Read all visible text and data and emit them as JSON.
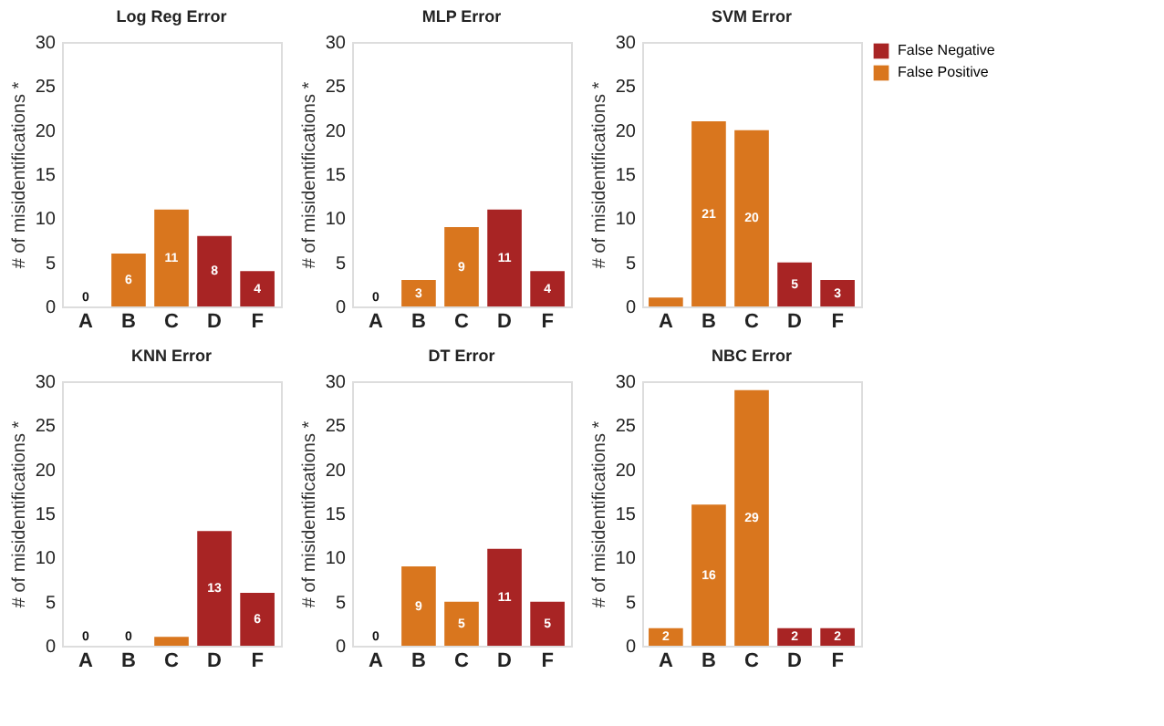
{
  "chart_data": [
    {
      "type": "bar",
      "title": "Log Reg Error",
      "ylabel": "# of misidentifications *",
      "categories": [
        "A",
        "B",
        "C",
        "D",
        "F"
      ],
      "ylim": [
        0,
        30
      ],
      "yticks": [
        0,
        5,
        10,
        15,
        20,
        25,
        30
      ],
      "grid": false,
      "legend": false,
      "data_labels": true,
      "series": [
        {
          "color": "#a82424",
          "values": [
            null,
            null,
            null,
            8,
            4
          ]
        },
        {
          "color": "#d9761e",
          "values": [
            0,
            6,
            11,
            null,
            null
          ]
        }
      ]
    },
    {
      "type": "bar",
      "title": "MLP Error",
      "ylabel": "# of misidentifications *",
      "categories": [
        "A",
        "B",
        "C",
        "D",
        "F"
      ],
      "ylim": [
        0,
        30
      ],
      "yticks": [
        0,
        5,
        10,
        15,
        20,
        25,
        30
      ],
      "grid": false,
      "legend": false,
      "data_labels": true,
      "series": [
        {
          "color": "#a82424",
          "values": [
            null,
            null,
            null,
            11,
            4
          ]
        },
        {
          "color": "#d9761e",
          "values": [
            0,
            3,
            9,
            null,
            null
          ]
        }
      ]
    },
    {
      "type": "bar",
      "title": "SVM Error",
      "ylabel": "# of misidentifications *",
      "categories": [
        "A",
        "B",
        "C",
        "D",
        "F"
      ],
      "ylim": [
        0,
        30
      ],
      "yticks": [
        0,
        5,
        10,
        15,
        20,
        25,
        30
      ],
      "grid": false,
      "legend": "top right",
      "series": [
        {
          "name": "False Negative",
          "color": "#a82424",
          "values": [
            null,
            null,
            null,
            5,
            3
          ],
          "value_labels": [
            null,
            null,
            null,
            "5",
            "3"
          ]
        },
        {
          "name": "False Positive",
          "color": "#d9761e",
          "values": [
            1,
            21,
            20,
            null,
            null
          ],
          "value_labels": [
            null,
            "21",
            "20",
            null,
            null
          ]
        }
      ]
    },
    {
      "type": "bar",
      "title": "KNN Error",
      "ylabel": "# of misidentifications *",
      "categories": [
        "A",
        "B",
        "C",
        "D",
        "F"
      ],
      "ylim": [
        0,
        30
      ],
      "yticks": [
        0,
        5,
        10,
        15,
        20,
        25,
        30
      ],
      "grid": false,
      "legend": false,
      "series": [
        {
          "color": "#a82424",
          "values": [
            null,
            null,
            null,
            13,
            6
          ],
          "value_labels": [
            null,
            null,
            null,
            "13",
            "6"
          ]
        },
        {
          "color": "#d9761e",
          "values": [
            0,
            0,
            1,
            null,
            null
          ],
          "value_labels": [
            "0",
            "0",
            null,
            null,
            null
          ]
        }
      ]
    },
    {
      "type": "bar",
      "title": "DT Error",
      "ylabel": "# of misidentifications *",
      "categories": [
        "A",
        "B",
        "C",
        "D",
        "F"
      ],
      "ylim": [
        0,
        30
      ],
      "yticks": [
        0,
        5,
        10,
        15,
        20,
        25,
        30
      ],
      "grid": false,
      "legend": false,
      "data_labels": true,
      "series": [
        {
          "color": "#a82424",
          "values": [
            null,
            null,
            null,
            11,
            5
          ]
        },
        {
          "color": "#d9761e",
          "values": [
            0,
            9,
            5,
            null,
            null
          ]
        }
      ]
    },
    {
      "type": "bar",
      "title": "NBC Error",
      "ylabel": "# of misidentifications *",
      "categories": [
        "A",
        "B",
        "C",
        "D",
        "F"
      ],
      "ylim": [
        0,
        30
      ],
      "yticks": [
        0,
        5,
        10,
        15,
        20,
        25,
        30
      ],
      "grid": false,
      "legend": false,
      "data_labels": true,
      "series": [
        {
          "color": "#a82424",
          "values": [
            null,
            null,
            null,
            2,
            2
          ]
        },
        {
          "color": "#d9761e",
          "values": [
            2,
            16,
            29,
            null,
            null
          ]
        }
      ]
    }
  ]
}
